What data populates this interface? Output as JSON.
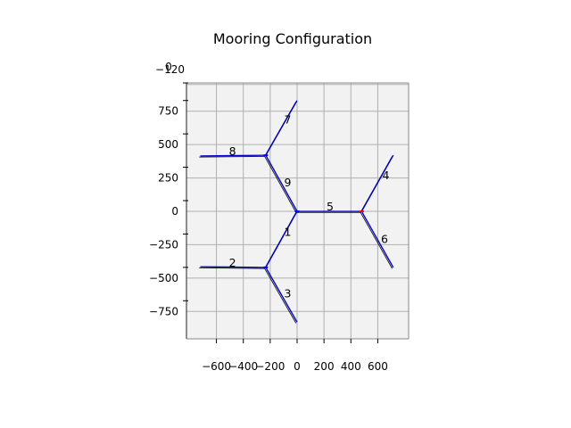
{
  "chart_data": {
    "type": "line",
    "title": "Mooring Configuration",
    "xlabel": "",
    "ylabel": "",
    "xlim": [
      -820,
      820
    ],
    "ylim": [
      -950,
      950
    ],
    "xticks": [
      -600,
      -400,
      -200,
      0,
      200,
      400,
      600
    ],
    "xtick_labels": [
      "−600",
      "−400",
      "−200",
      "0",
      "200",
      "400",
      "600"
    ],
    "yticks": [
      -750,
      -500,
      -250,
      0,
      250,
      500,
      750
    ],
    "ytick_labels": [
      "−750",
      "−500",
      "−250",
      "0",
      "250",
      "500",
      "750"
    ],
    "z_axis_ticks": [
      "−120",
      "0"
    ],
    "grid": true,
    "colors": {
      "line": "#0000cc",
      "shadow": "#000000",
      "anchor_red": "#ff0000",
      "anchor_blue": "#0000ff",
      "pane": "#f2f2f2",
      "grid": "#b0b0b0"
    },
    "anchors": [
      {
        "x": 0,
        "y": 0,
        "color": "#0000ff"
      },
      {
        "x": -233,
        "y": 420,
        "color": "#0000ff"
      },
      {
        "x": -233,
        "y": -420,
        "color": "#0000ff"
      },
      {
        "x": 480,
        "y": 0,
        "color": "#ff0000"
      }
    ],
    "lines": [
      {
        "label": "1",
        "x": [
          0,
          -233
        ],
        "y": [
          0,
          -420
        ],
        "label_at": [
          -70,
          -160
        ]
      },
      {
        "label": "2",
        "x": [
          -233,
          -720
        ],
        "y": [
          -420,
          -415
        ],
        "label_at": [
          -480,
          -390
        ]
      },
      {
        "label": "3",
        "x": [
          -233,
          0
        ],
        "y": [
          -420,
          -830
        ],
        "label_at": [
          -70,
          -620
        ]
      },
      {
        "label": "4",
        "x": [
          480,
          715
        ],
        "y": [
          0,
          420
        ],
        "label_at": [
          660,
          265
        ]
      },
      {
        "label": "5",
        "x": [
          0,
          480
        ],
        "y": [
          0,
          0
        ],
        "label_at": [
          245,
          30
        ]
      },
      {
        "label": "6",
        "x": [
          480,
          715
        ],
        "y": [
          0,
          -420
        ],
        "label_at": [
          650,
          -215
        ]
      },
      {
        "label": "7",
        "x": [
          -233,
          0
        ],
        "y": [
          420,
          830
        ],
        "label_at": [
          -70,
          680
        ]
      },
      {
        "label": "8",
        "x": [
          -233,
          -720
        ],
        "y": [
          420,
          415
        ],
        "label_at": [
          -480,
          445
        ]
      },
      {
        "label": "9",
        "x": [
          0,
          -233
        ],
        "y": [
          0,
          420
        ],
        "label_at": [
          -70,
          210
        ]
      }
    ]
  }
}
